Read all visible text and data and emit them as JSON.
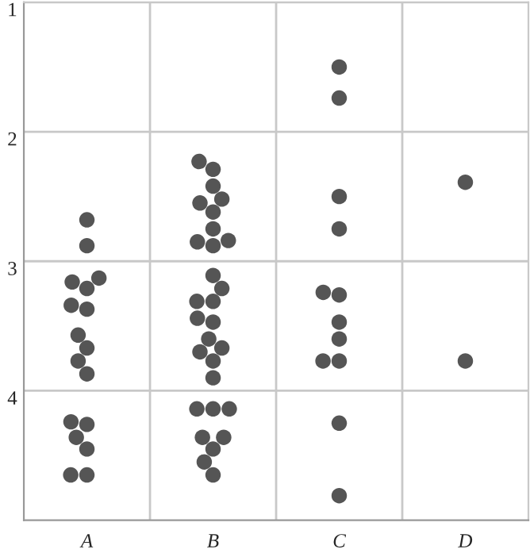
{
  "chart_data": {
    "type": "scatter",
    "categories": [
      "A",
      "B",
      "C",
      "D"
    ],
    "ylim": [
      5.0,
      1.0
    ],
    "yticks": [
      1,
      2,
      3,
      4
    ],
    "grid": true,
    "marker": "circle",
    "series": [
      {
        "color": "#555555",
        "x": [
          "A",
          "A",
          "A",
          "A",
          "A",
          "A",
          "A",
          "A",
          "A",
          "A",
          "A",
          "A",
          "A",
          "A",
          "A",
          "A",
          "A",
          "B",
          "B",
          "B",
          "B",
          "B",
          "B",
          "B",
          "B",
          "B",
          "B",
          "B",
          "B",
          "B",
          "B",
          "B",
          "B",
          "B",
          "B",
          "B",
          "B",
          "B",
          "B",
          "B",
          "B",
          "B",
          "B",
          "B",
          "B",
          "B",
          "C",
          "C",
          "C",
          "C",
          "C",
          "C",
          "C",
          "C",
          "C",
          "C",
          "C",
          "C",
          "D",
          "D"
        ],
        "values": [
          2.88,
          2.68,
          3.21,
          3.16,
          3.13,
          3.37,
          3.34,
          3.57,
          3.67,
          3.77,
          3.87,
          4.26,
          4.24,
          4.36,
          4.45,
          4.65,
          4.65,
          2.23,
          2.29,
          2.42,
          2.55,
          2.52,
          2.62,
          2.75,
          2.85,
          2.84,
          2.88,
          3.31,
          3.21,
          3.11,
          3.31,
          3.47,
          3.44,
          3.6,
          3.67,
          3.7,
          3.77,
          3.9,
          4.14,
          4.14,
          4.14,
          4.36,
          4.36,
          4.45,
          4.55,
          4.65,
          1.5,
          1.74,
          2.5,
          2.75,
          3.24,
          3.26,
          3.47,
          3.6,
          3.77,
          3.77,
          4.25,
          4.81,
          2.39,
          3.77
        ]
      }
    ]
  }
}
